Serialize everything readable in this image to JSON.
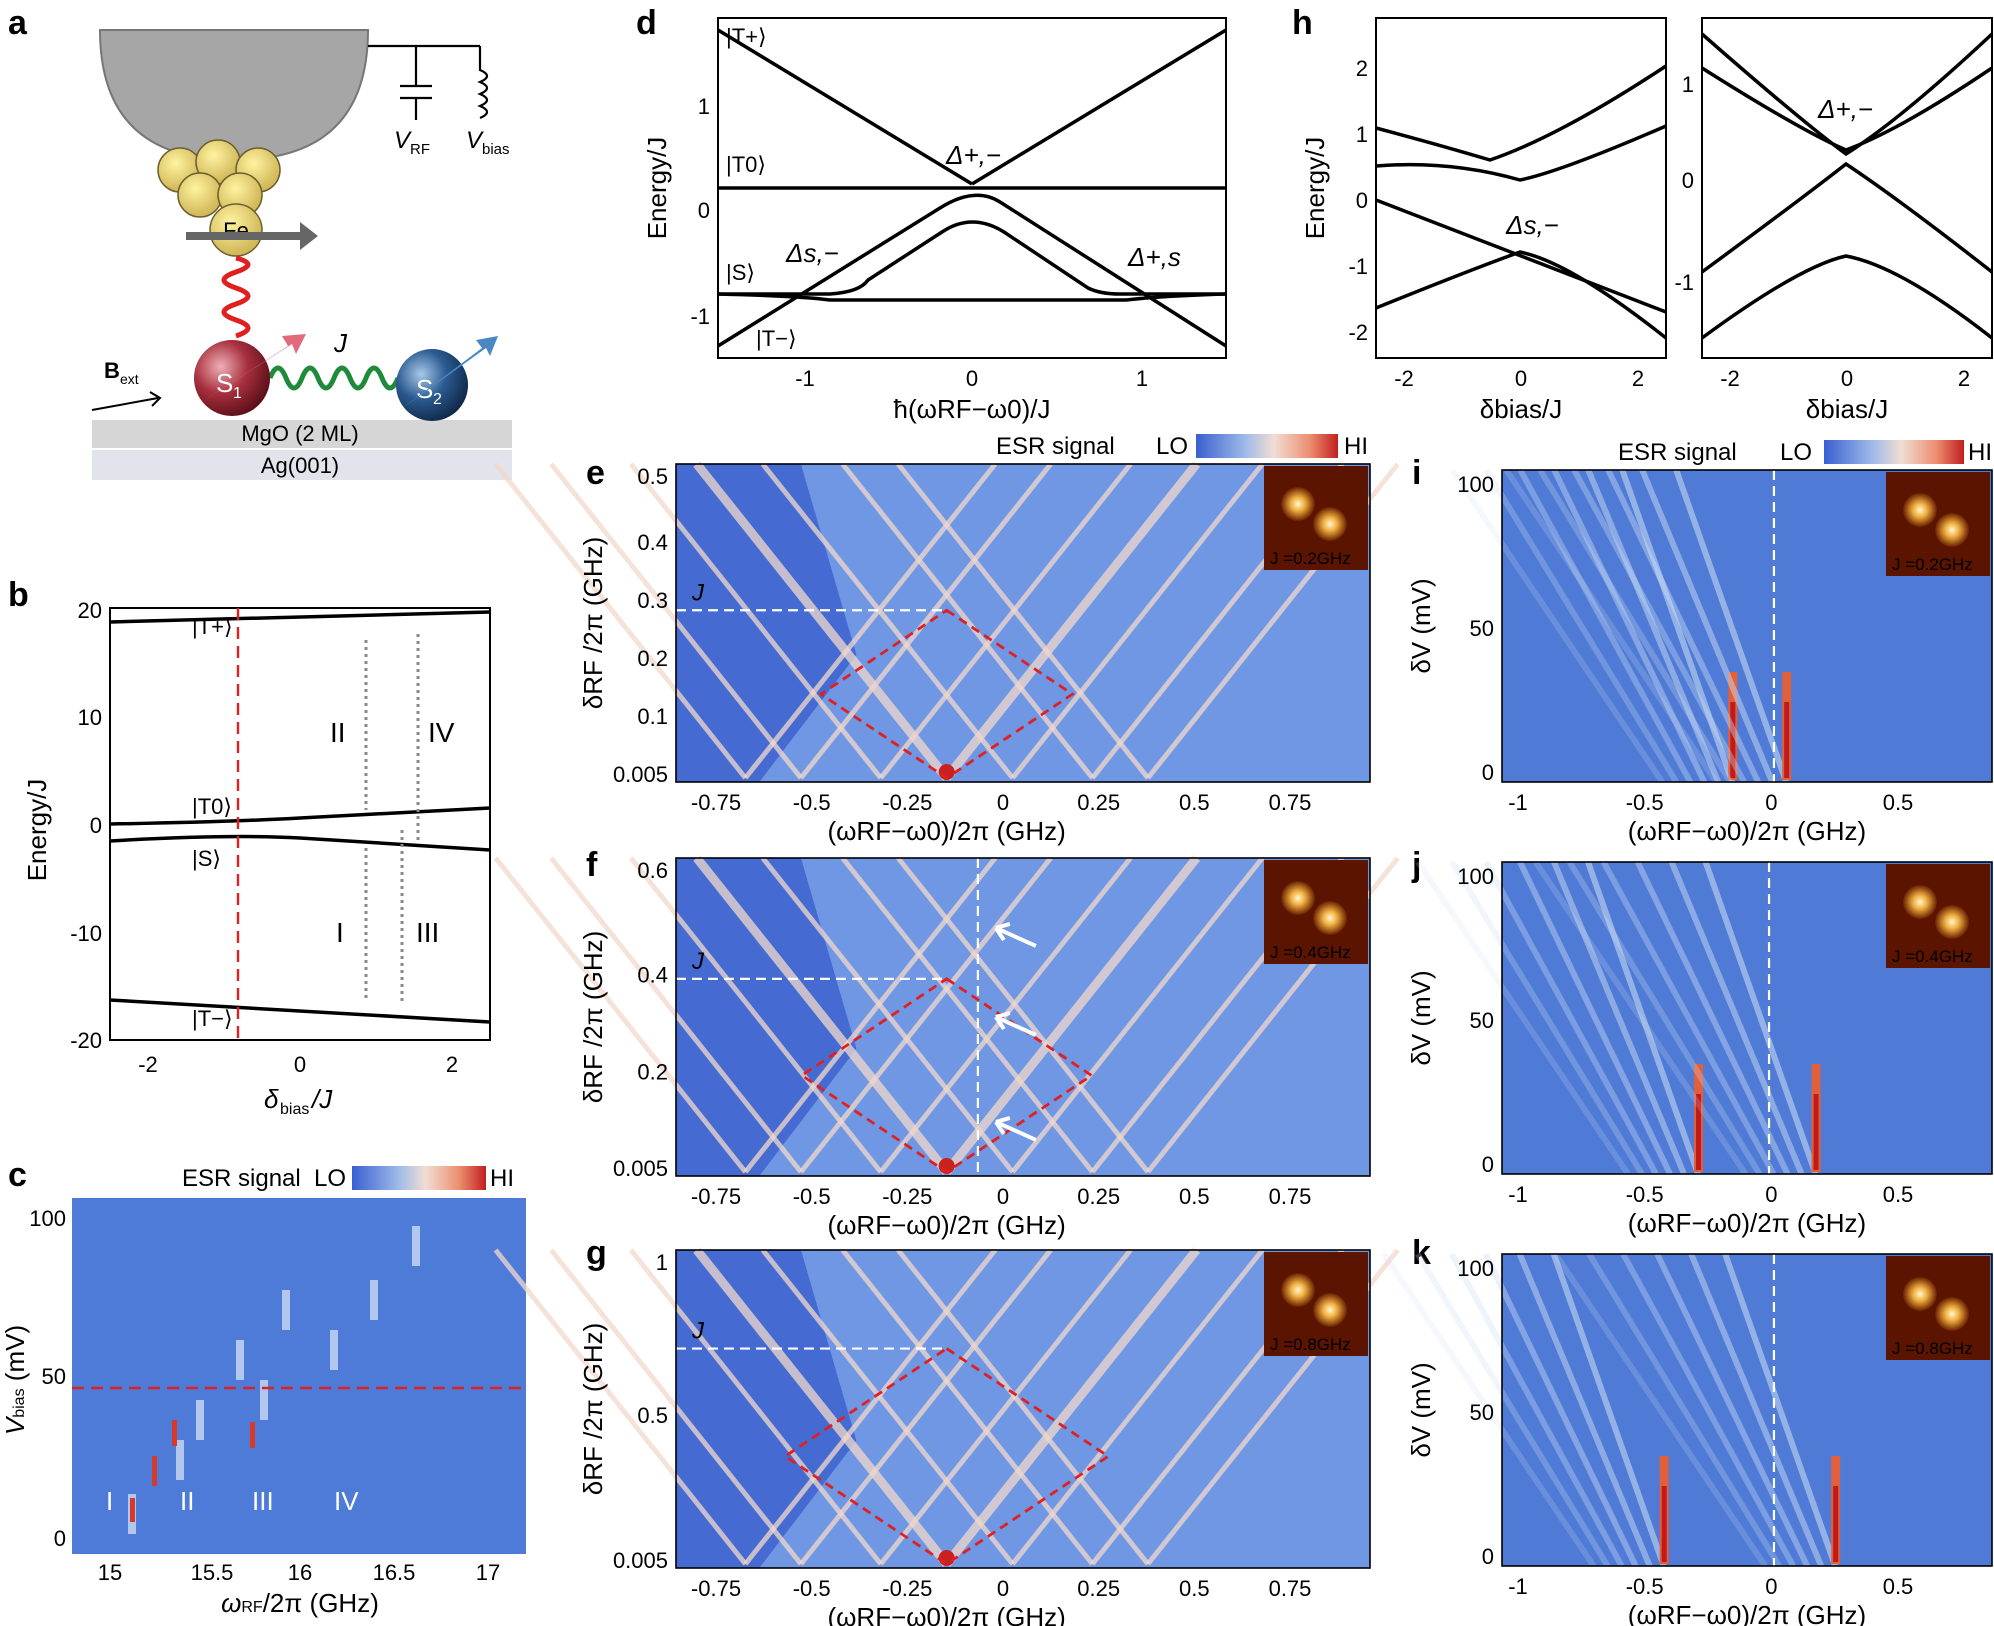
{
  "panel_labels": [
    "a",
    "b",
    "c",
    "d",
    "e",
    "f",
    "g",
    "h",
    "i",
    "j",
    "k"
  ],
  "panel_a": {
    "v_rf": "V",
    "v_rf_sub": "RF",
    "v_bias": "V",
    "v_bias_sub": "bias",
    "fe": "Fe",
    "j": "J",
    "b_ext": "B",
    "b_ext_sub": "ext",
    "s1": "S",
    "s1_sub": "1",
    "s2": "S",
    "s2_sub": "2",
    "mgo": "MgO (2 ML)",
    "ag": "Ag(001)"
  },
  "panel_b": {
    "ylabel": "Energy/J",
    "xlabel_main": "δ",
    "xlabel_sub": "bias",
    "xlabel_tail": "/J",
    "yticks": [
      "20",
      "10",
      "0",
      "-10",
      "-20"
    ],
    "xticks": [
      "-2",
      "0",
      "2"
    ],
    "kets": [
      "|T+⟩",
      "|T0⟩",
      "|S⟩",
      "|T−⟩"
    ],
    "transitions": [
      "I",
      "II",
      "III",
      "IV"
    ]
  },
  "panel_c": {
    "title": "ESR signal",
    "lo": "LO",
    "hi": "HI",
    "ylabel_main": "V",
    "ylabel_sub": "bias",
    "ylabel_tail": " (mV)",
    "xlabel": "ω",
    "xlabel_sub": "RF",
    "xlabel_tail": "/2π (GHz)",
    "xticks": [
      "15",
      "15.5",
      "16",
      "16.5",
      "17"
    ],
    "yticks": [
      "100",
      "50",
      "0"
    ],
    "region_labels": [
      "I",
      "II",
      "III",
      "IV"
    ]
  },
  "panel_d": {
    "ylabel": "Energy/J",
    "xlabel": "ħ(ωRF−ω0)/J",
    "xticks": [
      "-1",
      "0",
      "1"
    ],
    "yticks": [
      "1",
      "0",
      "-1"
    ],
    "kets": [
      "|T+⟩",
      "|T0⟩",
      "|S⟩",
      "|T−⟩"
    ],
    "gaps": [
      "Δ+,−",
      "Δs,−",
      "Δ+,s"
    ],
    "gap_colors": [
      "#4a77b4",
      "#1a8a3a",
      "#e0556a"
    ]
  },
  "panel_h": {
    "ylabel": "Energy/J",
    "xlabel": "δbias/J",
    "left_yticks": [
      "2",
      "1",
      "0",
      "-1",
      "-2"
    ],
    "right_yticks": [
      "1",
      "0",
      "-1"
    ],
    "xticks": [
      "-2",
      "0",
      "2"
    ],
    "gaps": [
      "Δs,−",
      "Δ+,−"
    ]
  },
  "map_common": {
    "title": "ESR signal",
    "lo": "LO",
    "hi": "HI",
    "x_label": "(ωRF−ω0)/2π (GHz)",
    "y_label_efg": "δRF /2π (GHz)",
    "y_label_ijk": "δV (mV)",
    "j_marker": "J"
  },
  "panel_e": {
    "yticks": [
      "0.5",
      "0.4",
      "0.3",
      "0.2",
      "0.1",
      "0.005"
    ],
    "xticks": [
      "-0.75",
      "-0.5",
      "-0.25",
      "0",
      "0.25",
      "0.5",
      "0.75"
    ],
    "inset": "J =0.2GHz"
  },
  "panel_f": {
    "yticks": [
      "0.6",
      "0.4",
      "0.2",
      "0.005"
    ],
    "xticks": [
      "-0.75",
      "-0.5",
      "-0.25",
      "0",
      "0.25",
      "0.5",
      "0.75"
    ],
    "inset": "J =0.4GHz"
  },
  "panel_g": {
    "yticks": [
      "1",
      "0.5",
      "0.005"
    ],
    "xticks": [
      "-0.75",
      "-0.5",
      "-0.25",
      "0",
      "0.25",
      "0.5",
      "0.75"
    ],
    "inset": "J =0.8GHz"
  },
  "panel_i": {
    "yticks": [
      "100",
      "50",
      "0"
    ],
    "xticks": [
      "-1",
      "-0.5",
      "0",
      "0.5"
    ],
    "inset": "J =0.2GHz"
  },
  "panel_j": {
    "yticks": [
      "100",
      "50",
      "0"
    ],
    "xticks": [
      "-1",
      "-0.5",
      "0",
      "0.5"
    ],
    "inset": "J =0.4GHz"
  },
  "panel_k": {
    "yticks": [
      "100",
      "50",
      "0"
    ],
    "xticks": [
      "-1",
      "-0.5",
      "0",
      "0.5"
    ],
    "inset": "J =0.8GHz"
  }
}
